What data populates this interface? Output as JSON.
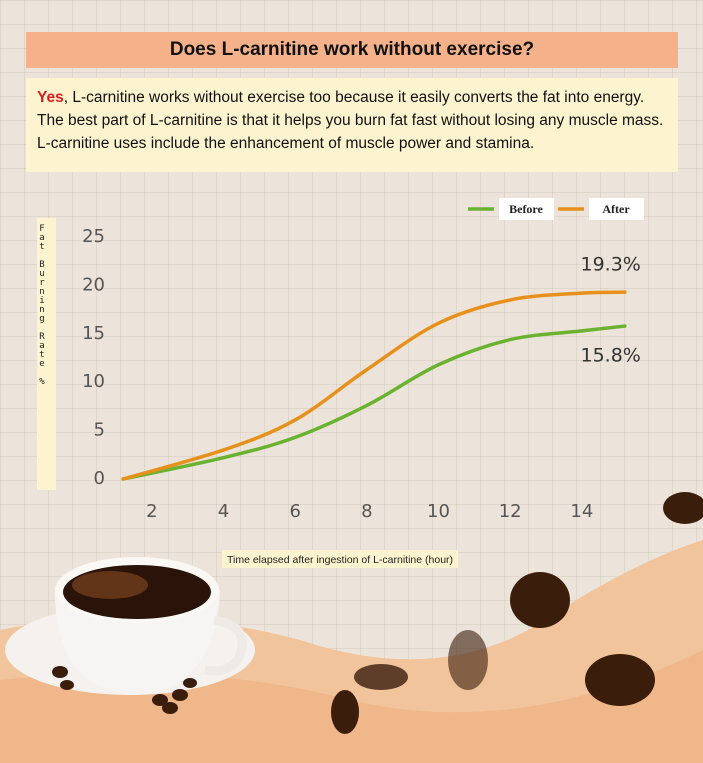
{
  "header": {
    "title": "Does L-carnitine work without exercise?"
  },
  "intro": {
    "lead": "Yes",
    "text": ", L-carnitine works without exercise too because it easily converts the fat into energy. The best part of L-carnitine is that it helps you burn fat fast without losing any muscle mass. L-carnitine uses include the enhancement of muscle power and stamina."
  },
  "chart_data": {
    "type": "line",
    "x_label": "Time elapsed after ingestion of L-carnitine (hour)",
    "y_label": "Fat Burning Rate %",
    "x": [
      1.2,
      4,
      6,
      8,
      10,
      12,
      14,
      15.2
    ],
    "series": [
      {
        "name": "Before",
        "color": "#6ab22f",
        "values": [
          0,
          2.2,
          4.3,
          7.6,
          11.8,
          14.4,
          15.3,
          15.8
        ],
        "value_labels": [
          null,
          null,
          null,
          null,
          null,
          null,
          null,
          "15.8%"
        ]
      },
      {
        "name": "After",
        "color": "#e8901c",
        "values": [
          0,
          3,
          6.1,
          11.3,
          16.1,
          18.5,
          19.2,
          19.3
        ],
        "value_labels": [
          null,
          null,
          null,
          null,
          null,
          null,
          null,
          "19.3%"
        ]
      }
    ],
    "xlim": [
      1,
      15.5
    ],
    "xticks": [
      2,
      4,
      6,
      8,
      10,
      12,
      14
    ],
    "ylim": [
      0,
      25
    ],
    "yticks": [
      0,
      5,
      10,
      15,
      20,
      25
    ],
    "legend": "top-right"
  }
}
